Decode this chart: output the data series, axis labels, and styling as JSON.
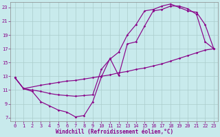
{
  "xlabel": "Windchill (Refroidissement éolien,°C)",
  "background_color": "#c8eaec",
  "line_color": "#880088",
  "grid_color": "#aacccc",
  "xlim": [
    -0.5,
    23.5
  ],
  "ylim": [
    6.5,
    23.8
  ],
  "xticks": [
    0,
    1,
    2,
    3,
    4,
    5,
    6,
    7,
    8,
    9,
    10,
    11,
    12,
    13,
    14,
    15,
    16,
    17,
    18,
    19,
    20,
    21,
    22,
    23
  ],
  "yticks": [
    7,
    9,
    11,
    13,
    15,
    17,
    19,
    21,
    23
  ],
  "line1_x": [
    0,
    1,
    2,
    3,
    4,
    5,
    6,
    7,
    8,
    9,
    10,
    11,
    12,
    13,
    14,
    15,
    16,
    17,
    18,
    19,
    20,
    21,
    22,
    23
  ],
  "line1_y": [
    12.8,
    11.2,
    10.8,
    9.3,
    8.7,
    8.1,
    7.8,
    7.1,
    7.3,
    9.3,
    12.9,
    15.6,
    13.1,
    17.7,
    18.0,
    20.3,
    22.5,
    22.7,
    23.2,
    23.2,
    22.8,
    22.0,
    18.0,
    17.0
  ],
  "line2_x": [
    0,
    1,
    3,
    4,
    5,
    6,
    7,
    8,
    9,
    10,
    11,
    12,
    13,
    14,
    15,
    16,
    17,
    18,
    19,
    20,
    21,
    22,
    23
  ],
  "line2_y": [
    12.8,
    11.2,
    11.7,
    11.9,
    12.1,
    12.3,
    12.4,
    12.6,
    12.8,
    13.0,
    13.2,
    13.5,
    13.7,
    14.0,
    14.2,
    14.5,
    14.8,
    15.2,
    15.6,
    16.0,
    16.4,
    16.8,
    17.0
  ],
  "line3_x": [
    0,
    1,
    2,
    3,
    4,
    5,
    6,
    7,
    8,
    9,
    10,
    11,
    12,
    13,
    14,
    15,
    16,
    17,
    18,
    19,
    20,
    21,
    22,
    23
  ],
  "line3_y": [
    12.8,
    11.2,
    11.0,
    10.8,
    10.5,
    10.3,
    10.2,
    10.1,
    10.2,
    10.3,
    14.0,
    15.5,
    16.5,
    19.0,
    20.5,
    22.5,
    22.7,
    23.2,
    23.5,
    23.0,
    22.5,
    22.3,
    20.5,
    17.0
  ]
}
